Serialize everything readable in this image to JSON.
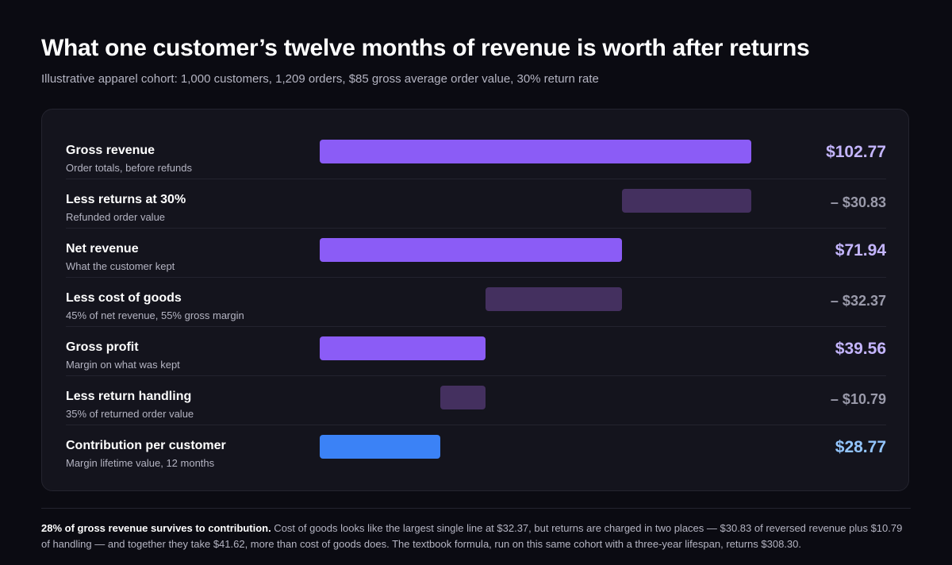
{
  "title": "What one customer’s twelve months of revenue is worth after returns",
  "subtitle": "Illustrative apparel cohort: 1,000 customers, 1,209 orders, $85 gross average order value, 30% return rate",
  "colors": {
    "total": "#8b5cf6",
    "deduction": "#44305f",
    "final": "#3b82f6",
    "total_value": "#c4b5fd",
    "deduction_value": "#9a9aaa",
    "final_value": "#93c5fd"
  },
  "chart_data": {
    "type": "bar",
    "variant": "waterfall",
    "title": "What one customer’s twelve months of revenue is worth after returns",
    "subtitle": "Illustrative apparel cohort: 1,000 customers, 1,209 orders, $85 gross average order value, 30% return rate",
    "xlim": [
      0,
      102.77
    ],
    "rows": [
      {
        "label": "Gross revenue",
        "sublabel": "Order totals, before refunds",
        "kind": "total",
        "start": 0,
        "end": 102.77,
        "value_label": "$102.77"
      },
      {
        "label": "Less returns at 30%",
        "sublabel": "Refunded order value",
        "kind": "deduction",
        "start": 71.94,
        "end": 102.77,
        "value_label": "– $30.83"
      },
      {
        "label": "Net revenue",
        "sublabel": "What the customer kept",
        "kind": "total",
        "start": 0,
        "end": 71.94,
        "value_label": "$71.94"
      },
      {
        "label": "Less cost of goods",
        "sublabel": "45% of net revenue, 55% gross margin",
        "kind": "deduction",
        "start": 39.56,
        "end": 71.94,
        "value_label": "– $32.37"
      },
      {
        "label": "Gross profit",
        "sublabel": "Margin on what was kept",
        "kind": "total",
        "start": 0,
        "end": 39.56,
        "value_label": "$39.56"
      },
      {
        "label": "Less return handling",
        "sublabel": "35% of returned order value",
        "kind": "deduction",
        "start": 28.77,
        "end": 39.56,
        "value_label": "– $10.79"
      },
      {
        "label": "Contribution per customer",
        "sublabel": "Margin lifetime value, 12 months",
        "kind": "final",
        "start": 0,
        "end": 28.77,
        "value_label": "$28.77"
      }
    ]
  },
  "footnote": {
    "lead": "28% of gross revenue survives to contribution.",
    "body": " Cost of goods looks like the largest single line at $32.37, but returns are charged in two places — $30.83 of reversed revenue plus $10.79 of handling — and together they take $41.62, more than cost of goods does. The textbook formula, run on this same cohort with a three-year lifespan, returns $308.30."
  }
}
